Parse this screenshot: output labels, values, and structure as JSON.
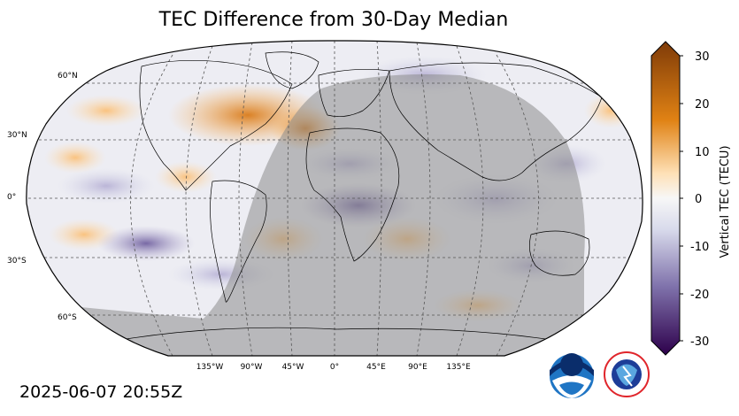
{
  "title": "TEC Difference from 30-Day Median",
  "timestamp": "2025-06-07 20:55Z",
  "lat_labels": [
    "60°N",
    "30°N",
    "0°",
    "30°S",
    "60°S"
  ],
  "lon_labels": [
    "135°W",
    "90°W",
    "45°W",
    "0°",
    "45°E",
    "90°E",
    "135°E"
  ],
  "colorbar": {
    "label": "Vertical TEC (TECU)",
    "ticks": [
      "30",
      "20",
      "10",
      "0",
      "-10",
      "-20",
      "-30"
    ],
    "range": [
      -30,
      30
    ],
    "colors": {
      "max": "#7f3b08",
      "high": "#e08214",
      "mid": "#f7f7f7",
      "low": "#8073ac",
      "min": "#2d004b"
    }
  },
  "night_shade_color": "#8c8c8c",
  "logos": {
    "noaa": "NOAA",
    "nws": "NATIONAL WEATHER SERVICE"
  }
}
